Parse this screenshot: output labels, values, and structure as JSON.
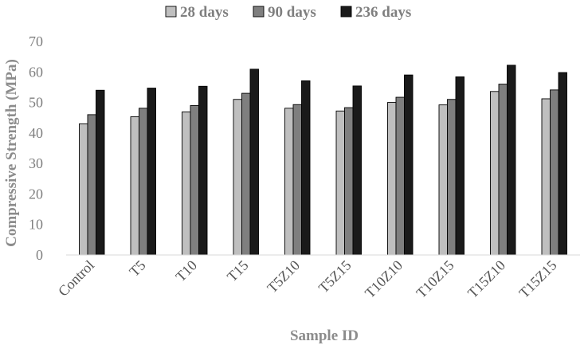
{
  "chart_data": {
    "type": "bar",
    "title": "",
    "xlabel": "Sample ID",
    "ylabel": "Compressive Strength (MPa)",
    "ylim": [
      0,
      70
    ],
    "yticks": [
      0,
      10,
      20,
      30,
      40,
      50,
      60,
      70
    ],
    "grid": false,
    "legend_position": "top",
    "categories": [
      "Control",
      "T5",
      "T10",
      "T15",
      "T5Z10",
      "T5Z15",
      "T10Z10",
      "T10Z15",
      "T15Z10",
      "T15Z15"
    ],
    "series": [
      {
        "name": "28 days",
        "color": "#bfbfbf",
        "values": [
          43.0,
          45.3,
          46.9,
          51.0,
          48.1,
          47.2,
          50.0,
          49.2,
          53.6,
          51.2
        ]
      },
      {
        "name": "90 days",
        "color": "#7f7f7f",
        "values": [
          46.0,
          48.1,
          49.0,
          53.0,
          49.3,
          48.3,
          51.7,
          51.0,
          56.0,
          54.1
        ]
      },
      {
        "name": "236 days",
        "color": "#1a1a1a",
        "values": [
          54.0,
          54.7,
          55.3,
          60.9,
          57.1,
          55.4,
          59.0,
          58.4,
          62.2,
          59.8
        ]
      }
    ]
  }
}
